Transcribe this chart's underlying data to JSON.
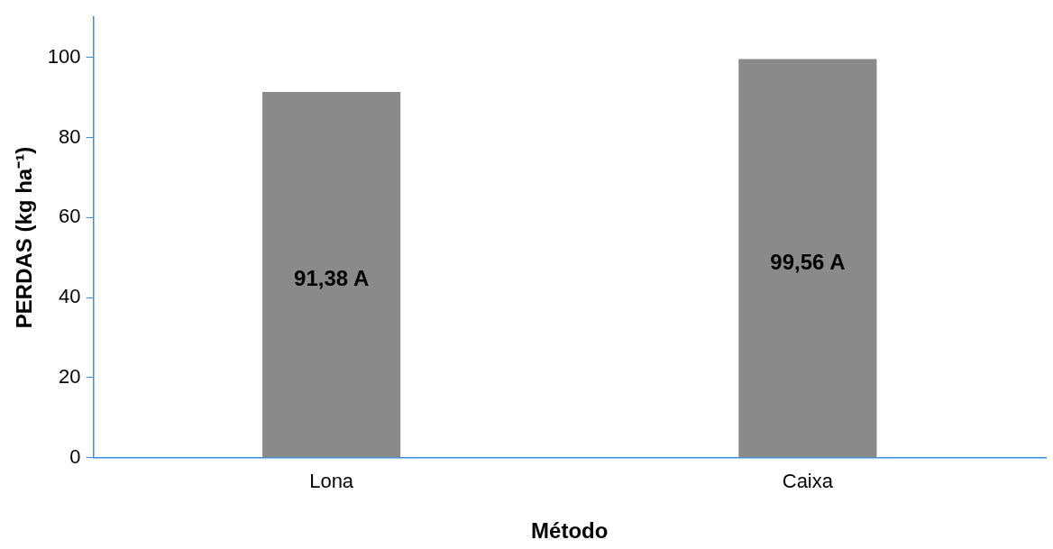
{
  "chart_data": {
    "type": "bar",
    "xlabel": "Método",
    "ylabel": "PERDAS (kg ha⁻¹)",
    "categories": [
      "Lona",
      "Caixa"
    ],
    "values": [
      91.38,
      99.56
    ],
    "value_labels": [
      "91,38 A",
      "99,56 A"
    ],
    "color": "#8a8a8a",
    "ylim": [
      0,
      110
    ],
    "yticks": [
      0,
      20,
      40,
      60,
      80,
      100
    ],
    "grid": false,
    "legend": false
  }
}
